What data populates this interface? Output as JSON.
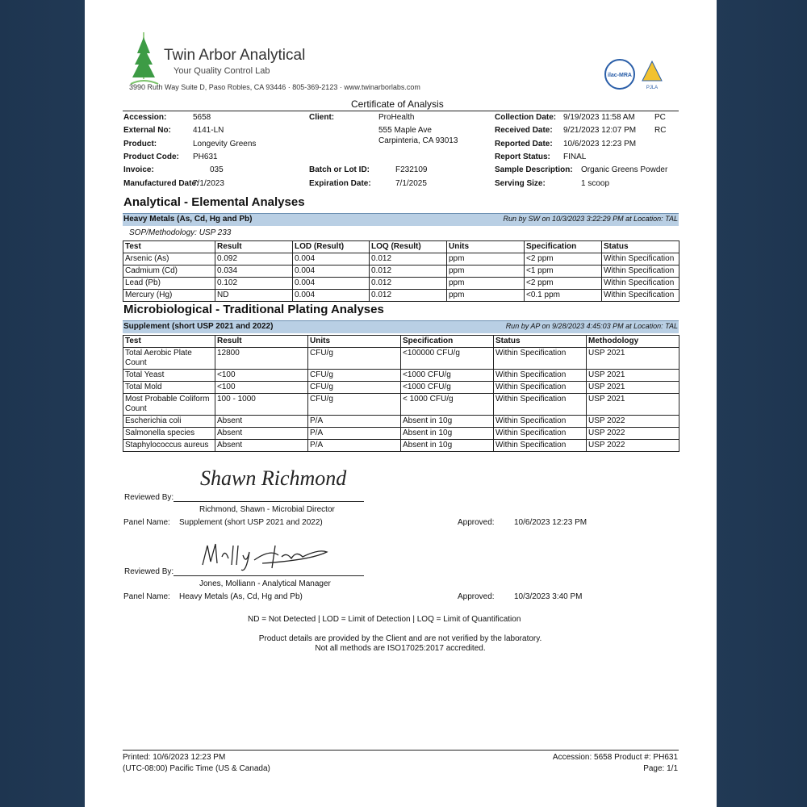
{
  "header": {
    "company": "Twin Arbor Analytical",
    "tagline": "Your Quality Control Lab",
    "address": "3990 Ruth Way Suite D, Paso Robles, CA 93446  ·  805-369-2123  ·  www.twinarborlabs.com",
    "badges": [
      "ilac-MRA",
      "PJLA"
    ]
  },
  "doc_title": "Certificate of Analysis",
  "info": {
    "col1": [
      {
        "label": "Accession:",
        "value": "5658"
      },
      {
        "label": "External No:",
        "value": "4141-LN"
      },
      {
        "label": "Product:",
        "value": "Longevity Greens"
      },
      {
        "label": "Product Code:",
        "value": "PH631"
      },
      {
        "label": "Invoice:",
        "value": "035"
      },
      {
        "label": "Manufactured Date:",
        "value": "7/1/2023"
      }
    ],
    "col2": [
      {
        "label": "Client:",
        "value": "ProHealth"
      },
      {
        "label": "Batch or Lot ID:",
        "value": "F232109"
      },
      {
        "label": "Expiration Date:",
        "value": "7/1/2025"
      }
    ],
    "client_address": [
      "555 Maple Ave",
      "Carpinteria, CA 93013"
    ],
    "col3": [
      {
        "label": "Collection Date:",
        "value": "9/19/2023 11:58 AM",
        "extra": "PC"
      },
      {
        "label": "Received Date:",
        "value": "9/21/2023 12:07 PM",
        "extra": "RC"
      },
      {
        "label": "Reported Date:",
        "value": "10/6/2023 12:23 PM"
      },
      {
        "label": "Report Status:",
        "value": "FINAL"
      },
      {
        "label": "Sample Description:",
        "value": "Organic Greens Powder"
      },
      {
        "label": "Serving Size:",
        "value": "1 scoop"
      }
    ]
  },
  "sections": [
    {
      "title": "Analytical - Elemental Analyses",
      "panel": "Heavy Metals (As, Cd, Hg and Pb)",
      "run": "Run by SW on 10/3/2023 3:22:29 PM at Location: TAL",
      "method": "SOP/Methodology: USP 233",
      "table": {
        "columns": [
          "Test",
          "Result",
          "LOD (Result)",
          "LOQ (Result)",
          "Units",
          "Specification",
          "Status"
        ],
        "rows": [
          [
            "Arsenic (As)",
            "0.092",
            "0.004",
            "0.012",
            "ppm",
            "<2 ppm",
            "Within Specification"
          ],
          [
            "Cadmium (Cd)",
            "0.034",
            "0.004",
            "0.012",
            "ppm",
            "<1 ppm",
            "Within Specification"
          ],
          [
            "Lead (Pb)",
            "0.102",
            "0.004",
            "0.012",
            "ppm",
            "<2 ppm",
            "Within Specification"
          ],
          [
            "Mercury (Hg)",
            "ND",
            "0.004",
            "0.012",
            "ppm",
            "<0.1 ppm",
            "Within Specification"
          ]
        ]
      }
    },
    {
      "title": "Microbiological - Traditional Plating Analyses",
      "panel": "Supplement (short USP 2021 and 2022)",
      "run": "Run by AP on 9/28/2023 4:45:03 PM at Location: TAL",
      "table": {
        "columns": [
          "Test",
          "Result",
          "Units",
          "Specification",
          "Status",
          "Methodology"
        ],
        "rows": [
          [
            "Total Aerobic Plate Count",
            "12800",
            "CFU/g",
            "<100000 CFU/g",
            "Within Specification",
            "USP 2021"
          ],
          [
            "Total Yeast",
            "<100",
            "CFU/g",
            "<1000 CFU/g",
            "Within Specification",
            "USP 2021"
          ],
          [
            "Total Mold",
            "<100",
            "CFU/g",
            "<1000 CFU/g",
            "Within Specification",
            "USP 2021"
          ],
          [
            "Most Probable Coliform Count",
            "100 - 1000",
            "CFU/g",
            "< 1000 CFU/g",
            "Within Specification",
            "USP 2021"
          ],
          [
            "Escherichia coli",
            "Absent",
            "P/A",
            "Absent in 10g",
            "Within Specification",
            "USP 2022"
          ],
          [
            "Salmonella species",
            "Absent",
            "P/A",
            "Absent in 10g",
            "Within Specification",
            "USP 2022"
          ],
          [
            "Staphylococcus aureus",
            "Absent",
            "P/A",
            "Absent in 10g",
            "Within Specification",
            "USP 2022"
          ]
        ]
      }
    }
  ],
  "reviews": [
    {
      "label": "Reviewed By:",
      "signature": "Shawn Richmond",
      "reviewer": "Richmond, Shawn   -   Microbial Director",
      "panel_label": "Panel Name:",
      "panel": "Supplement (short USP 2021 and 2022)",
      "approved_label": "Approved:",
      "approved": "10/6/2023 12:23 PM"
    },
    {
      "label": "Reviewed By:",
      "reviewer": "Jones, Molliann   -   Analytical Manager",
      "panel_label": "Panel Name:",
      "panel": "Heavy Metals (As, Cd, Hg and Pb)",
      "approved_label": "Approved:",
      "approved": "10/3/2023 3:40 PM"
    }
  ],
  "legend": "ND = Not Detected    |    LOD = Limit of Detection    |    LOQ = Limit of Quantification",
  "notes": [
    "Product details are provided by the Client and are not verified by the laboratory.",
    "Not all methods are ISO17025:2017 accredited."
  ],
  "footer": {
    "printed": "Printed: 10/6/2023 12:23 PM",
    "timezone": "(UTC-08:00) Pacific Time (US & Canada)",
    "ids": "Accession: 5658    Product #: PH631",
    "page": "Page: 1/1"
  }
}
